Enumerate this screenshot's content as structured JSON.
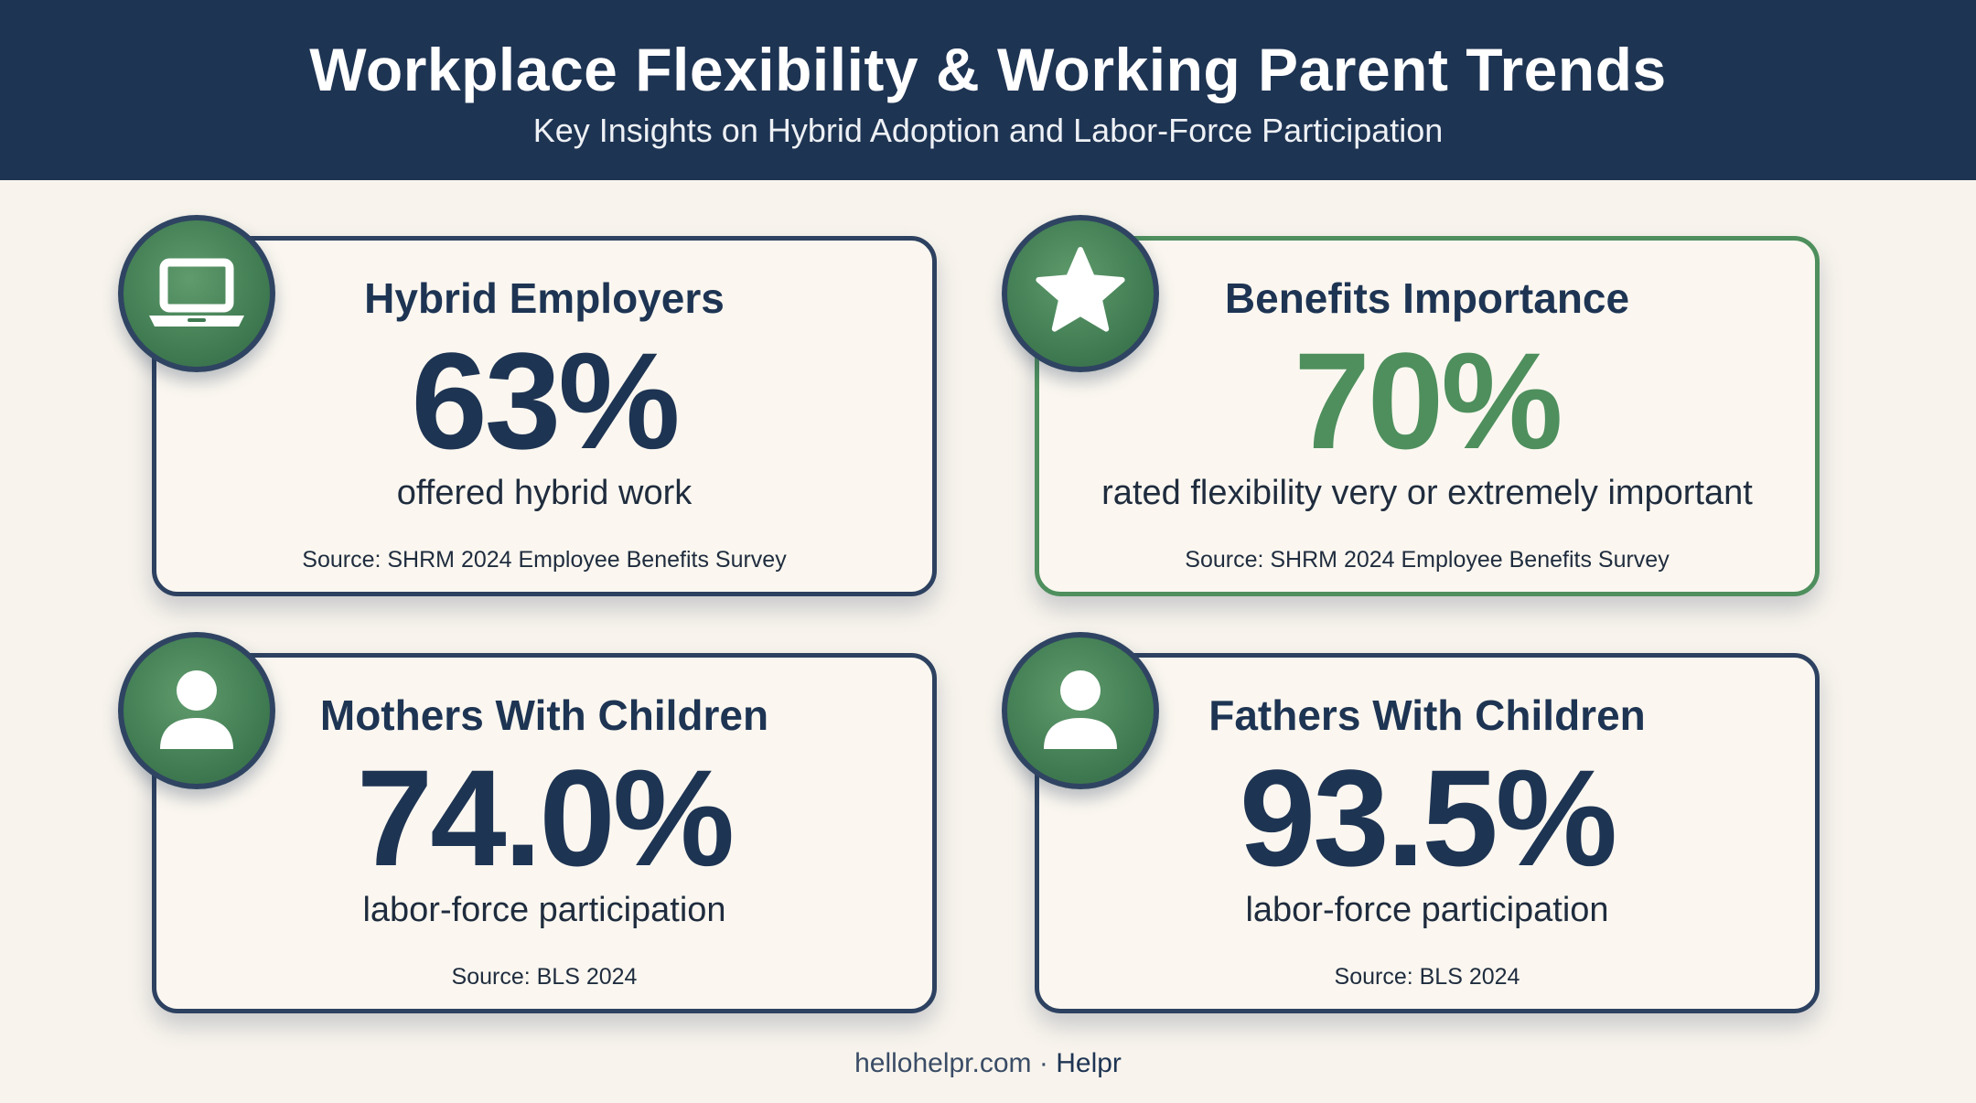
{
  "header": {
    "title": "Workplace Flexibility & Working Parent Trends",
    "subtitle": "Key Insights on Hybrid Adoption and Labor-Force Participation"
  },
  "cards": [
    {
      "title": "Hybrid Employers",
      "value": "63%",
      "caption": "offered hybrid work",
      "source": "Source: SHRM 2024 Employee Benefits Survey",
      "icon": "laptop-icon",
      "accent": "#1e3453"
    },
    {
      "title": "Benefits Importance",
      "value": "70%",
      "caption": "rated flexibility very or extremely important",
      "source": "Source: SHRM 2024 Employee Benefits Survey",
      "icon": "star-icon",
      "accent": "#4e8f5d"
    },
    {
      "title": "Mothers With Children",
      "value": "74.0%",
      "caption": "labor-force participation",
      "source": "Source: BLS 2024",
      "icon": "person-icon",
      "accent": "#1e3453"
    },
    {
      "title": "Fathers With Children",
      "value": "93.5%",
      "caption": "labor-force participation",
      "source": "Source: BLS 2024",
      "icon": "person-icon",
      "accent": "#1e3453"
    }
  ],
  "footer": {
    "site": "hellohelpr.com",
    "separator": "·",
    "brand": "Helpr"
  },
  "colors": {
    "header_bg": "#1e3453",
    "page_bg": "#f8f4ed",
    "green_accent": "#4e8f5d",
    "navy_text": "#1e3453"
  }
}
